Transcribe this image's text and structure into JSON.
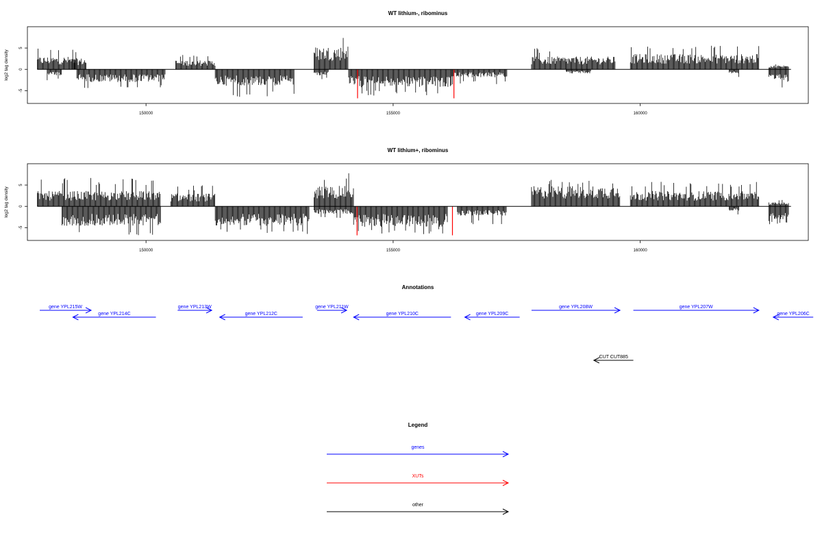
{
  "chart_data": [
    {
      "type": "bar",
      "title": "WT lithium-, ribominus",
      "ylabel": "log2 tag density",
      "xlim": [
        147600,
        163400
      ],
      "ylim": [
        -8,
        10
      ],
      "yticks": [
        -5,
        0,
        5
      ],
      "xticks": [
        150000,
        155000,
        160000
      ],
      "grid": false,
      "segments": [
        {
          "from": 147800,
          "to": 148600,
          "strand": "+",
          "level": 2.5,
          "peak": 5.3
        },
        {
          "from": 148500,
          "to": 148800,
          "strand": "+",
          "level": 2.2,
          "peak": 3.2
        },
        {
          "from": 148000,
          "to": 148300,
          "strand": "-",
          "level": 1.2,
          "peak": 2.8
        },
        {
          "from": 148600,
          "to": 150400,
          "strand": "-",
          "level": 2.5,
          "peak": 4.4
        },
        {
          "from": 150600,
          "to": 151400,
          "strand": "+",
          "level": 1.8,
          "peak": 3.4
        },
        {
          "from": 151400,
          "to": 153000,
          "strand": "-",
          "level": 3.2,
          "peak": 6.5
        },
        {
          "from": 153400,
          "to": 154100,
          "strand": "+",
          "level": 4.5,
          "peak": 8.6
        },
        {
          "from": 153400,
          "to": 153700,
          "strand": "-",
          "level": 1.2,
          "peak": 2.4
        },
        {
          "from": 154100,
          "to": 156200,
          "strand": "-",
          "level": 3.5,
          "peak": 6.2
        },
        {
          "from": 156200,
          "to": 157300,
          "strand": "-",
          "level": 1.6,
          "peak": 3.6
        },
        {
          "from": 157800,
          "to": 159500,
          "strand": "+",
          "level": 2.5,
          "peak": 5.0
        },
        {
          "from": 158500,
          "to": 159000,
          "strand": "-",
          "level": 0.8,
          "peak": 2.8
        },
        {
          "from": 159800,
          "to": 162400,
          "strand": "+",
          "level": 3.0,
          "peak": 5.6
        },
        {
          "from": 161800,
          "to": 162000,
          "strand": "-",
          "level": 0.8,
          "peak": 2.6
        },
        {
          "from": 162600,
          "to": 163000,
          "strand": "+",
          "level": 0.8,
          "peak": 1.5
        },
        {
          "from": 162600,
          "to": 163000,
          "strand": "-",
          "level": 2.5,
          "peak": 4.4
        }
      ],
      "highlight_bars": [
        {
          "x": 154280,
          "value": -6.8,
          "color": "#ff0000"
        },
        {
          "x": 156230,
          "value": -6.8,
          "color": "#ff0000"
        }
      ]
    },
    {
      "type": "bar",
      "title": "WT lithium+, ribominus",
      "ylabel": "log2 tag density",
      "xlim": [
        147600,
        163400
      ],
      "ylim": [
        -8,
        10
      ],
      "yticks": [
        -5,
        0,
        5
      ],
      "xticks": [
        150000,
        155000,
        160000
      ],
      "grid": false,
      "segments": [
        {
          "from": 147800,
          "to": 150300,
          "strand": "+",
          "level": 3.0,
          "peak": 7.0
        },
        {
          "from": 148300,
          "to": 150300,
          "strand": "-",
          "level": 3.8,
          "peak": 6.8
        },
        {
          "from": 150500,
          "to": 151400,
          "strand": "+",
          "level": 2.5,
          "peak": 5.0
        },
        {
          "from": 151400,
          "to": 153300,
          "strand": "-",
          "level": 3.8,
          "peak": 6.6
        },
        {
          "from": 153400,
          "to": 154200,
          "strand": "+",
          "level": 4.0,
          "peak": 8.2
        },
        {
          "from": 153400,
          "to": 154200,
          "strand": "-",
          "level": 1.5,
          "peak": 3.0
        },
        {
          "from": 154200,
          "to": 156100,
          "strand": "-",
          "level": 4.0,
          "peak": 6.6
        },
        {
          "from": 156300,
          "to": 157300,
          "strand": "-",
          "level": 1.8,
          "peak": 4.4
        },
        {
          "from": 157800,
          "to": 159600,
          "strand": "+",
          "level": 4.0,
          "peak": 6.4
        },
        {
          "from": 159800,
          "to": 162400,
          "strand": "+",
          "level": 3.0,
          "peak": 6.0
        },
        {
          "from": 161800,
          "to": 162000,
          "strand": "-",
          "level": 0.9,
          "peak": 2.8
        },
        {
          "from": 162600,
          "to": 163000,
          "strand": "+",
          "level": 0.8,
          "peak": 1.5
        },
        {
          "from": 162600,
          "to": 163000,
          "strand": "-",
          "level": 3.5,
          "peak": 6.0
        }
      ],
      "highlight_bars": [
        {
          "x": 154270,
          "value": -6.8,
          "color": "#ff0000"
        },
        {
          "x": 156200,
          "value": -6.8,
          "color": "#ff0000"
        }
      ]
    }
  ],
  "annotations": {
    "title": "Annotations",
    "genes_color": "#0000ff",
    "other_color": "#000000",
    "genes": [
      {
        "label": "gene YPL215W",
        "from": 147850,
        "to": 148890,
        "strand": "+",
        "row": 0
      },
      {
        "label": "gene YPL214C",
        "from": 148520,
        "to": 150200,
        "strand": "-",
        "row": 1
      },
      {
        "label": "gene YPL213W",
        "from": 150640,
        "to": 151330,
        "strand": "+",
        "row": 0
      },
      {
        "label": "gene YPL212C",
        "from": 151490,
        "to": 153170,
        "strand": "-",
        "row": 1
      },
      {
        "label": "gene YPL211W",
        "from": 153460,
        "to": 154060,
        "strand": "+",
        "row": 0
      },
      {
        "label": "gene YPL210C",
        "from": 154200,
        "to": 156170,
        "strand": "-",
        "row": 1
      },
      {
        "label": "gene YPL209C",
        "from": 156450,
        "to": 157560,
        "strand": "-",
        "row": 1
      },
      {
        "label": "gene YPL208W",
        "from": 157800,
        "to": 159590,
        "strand": "+",
        "row": 0
      },
      {
        "label": "gene YPL207W",
        "from": 159860,
        "to": 162400,
        "strand": "+",
        "row": 0
      },
      {
        "label": "gene YPL206C",
        "from": 162690,
        "to": 163500,
        "strand": "-",
        "row": 1
      }
    ],
    "other": [
      {
        "label": "CUT CUT885",
        "from": 159060,
        "to": 159860,
        "strand": "-",
        "row": 2
      }
    ]
  },
  "legend": {
    "title": "Legend",
    "items": [
      {
        "label": "genes",
        "color": "#0000ff"
      },
      {
        "label": "XUTs",
        "color": "#ff0000"
      },
      {
        "label": "other",
        "color": "#000000"
      }
    ]
  }
}
